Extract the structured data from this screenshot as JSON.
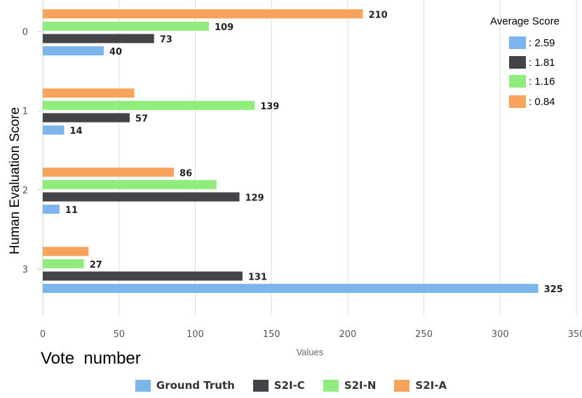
{
  "chart_data": {
    "type": "bar",
    "orientation": "horizontal",
    "categories": [
      "0",
      "1",
      "2",
      "3"
    ],
    "series": [
      {
        "name": "Ground Truth",
        "color": "#7cb5ec",
        "values": [
          40,
          14,
          11,
          325
        ],
        "labels": [
          "40",
          "14",
          "11",
          "325"
        ]
      },
      {
        "name": "S2I-C",
        "color": "#434348",
        "values": [
          73,
          57,
          129,
          131
        ],
        "labels": [
          "73",
          "57",
          "129",
          "131"
        ]
      },
      {
        "name": "S2I-N",
        "color": "#90ed7d",
        "values": [
          109,
          139,
          114,
          27
        ],
        "labels": [
          "109",
          "139",
          "",
          "27"
        ]
      },
      {
        "name": "S2I-A",
        "color": "#f7a35c",
        "values": [
          210,
          60,
          86,
          30
        ],
        "labels": [
          "210",
          "",
          "86",
          ""
        ]
      }
    ],
    "xlabel": "Values",
    "ylabel": "Human Evaluation Score",
    "xlim": [
      0,
      350
    ],
    "xticks": [
      0,
      50,
      100,
      150,
      200,
      250,
      300,
      350
    ],
    "xtick_labels": [
      "0",
      "50",
      "100",
      "150",
      "200",
      "250",
      "300",
      "350"
    ],
    "grid": true,
    "legend_position": "bottom"
  },
  "vote_label": "Vote  number",
  "average_score": {
    "title": "Average Score",
    "items": [
      {
        "color": "#7cb5ec",
        "text": ": 2.59"
      },
      {
        "color": "#434348",
        "text": ": 1.81"
      },
      {
        "color": "#90ed7d",
        "text": ": 1.16"
      },
      {
        "color": "#f7a35c",
        "text": ": 0.84"
      }
    ]
  }
}
